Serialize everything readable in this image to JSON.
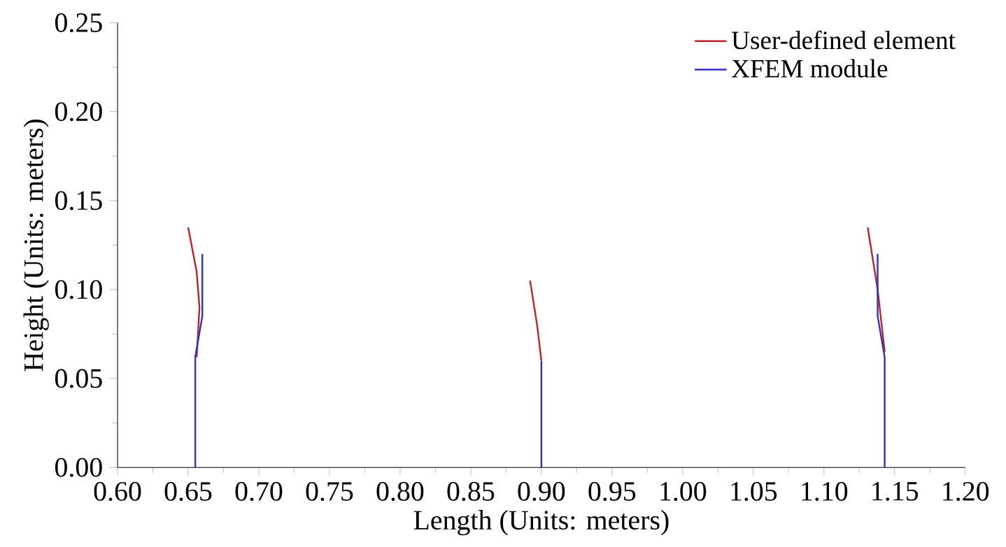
{
  "chart_data": {
    "type": "line",
    "xlabel": "Length (Units: meters)",
    "ylabel": "Height (Units: meters)",
    "xlim": [
      0.6,
      1.2
    ],
    "ylim": [
      0,
      0.25
    ],
    "xticks": [
      {
        "value": 0.6,
        "label": "0.60"
      },
      {
        "value": 0.65,
        "label": "0.65"
      },
      {
        "value": 0.7,
        "label": "0.70"
      },
      {
        "value": 0.75,
        "label": "0.75"
      },
      {
        "value": 0.8,
        "label": "0.80"
      },
      {
        "value": 0.85,
        "label": "0.85"
      },
      {
        "value": 0.9,
        "label": "0.90"
      },
      {
        "value": 0.95,
        "label": "0.95"
      },
      {
        "value": 1.0,
        "label": "1.00"
      },
      {
        "value": 1.05,
        "label": "1.05"
      },
      {
        "value": 1.1,
        "label": "1.10"
      },
      {
        "value": 1.15,
        "label": "1.15"
      },
      {
        "value": 1.2,
        "label": "1.20"
      }
    ],
    "yticks": [
      {
        "value": 0,
        "label": "0.00"
      },
      {
        "value": 0.05,
        "label": "0.05"
      },
      {
        "value": 0.1,
        "label": "0.10"
      },
      {
        "value": 0.15,
        "label": "0.15"
      },
      {
        "value": 0.2,
        "label": "0.20"
      },
      {
        "value": 0.25,
        "label": "0.25"
      }
    ],
    "legend": "top right",
    "grid": false,
    "marker": "none",
    "line_style": "solid",
    "series": [
      {
        "name": "User-defined element",
        "color": "#c0202a",
        "x": [
          0.656,
          0.658,
          0.656,
          0.65,
          null,
          0.9,
          0.897,
          0.892,
          null,
          1.143,
          1.138,
          1.131
        ],
        "values": [
          0.062,
          0.09,
          0.11,
          0.135,
          null,
          0.06,
          0.08,
          0.105,
          null,
          0.065,
          0.1,
          0.135
        ]
      },
      {
        "name": "XFEM module",
        "color": "#3030c0",
        "x": [
          0.655,
          0.655,
          0.66,
          0.66,
          null,
          0.9,
          0.9,
          null,
          1.143,
          1.143,
          1.138,
          1.138
        ],
        "values": [
          0,
          0.062,
          0.085,
          0.12,
          null,
          0,
          0.06,
          null,
          0,
          0.062,
          0.085,
          0.12
        ]
      }
    ]
  }
}
